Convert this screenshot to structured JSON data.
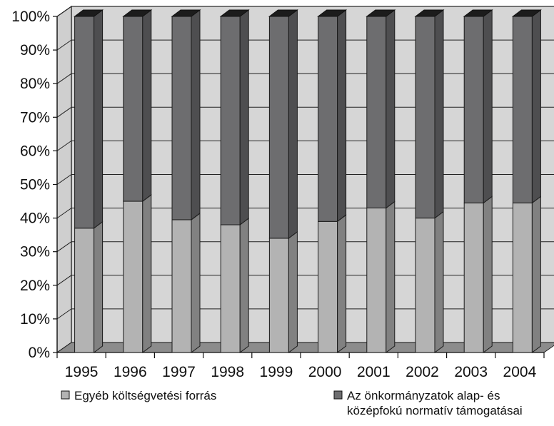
{
  "chart_data": {
    "type": "bar",
    "stacked": true,
    "percent_stacked": true,
    "three_d": true,
    "categories": [
      "1995",
      "1996",
      "1997",
      "1998",
      "1999",
      "2000",
      "2001",
      "2002",
      "2003",
      "2004"
    ],
    "series": [
      {
        "name": "Egyéb költségvetési forrás",
        "values": [
          37,
          45,
          39.5,
          38,
          34,
          39,
          43,
          40,
          44.5,
          44.5
        ],
        "color": "#b3b3b3"
      },
      {
        "name": "Az önkormányzatok alap- és középfokú normatív támogatásai",
        "legend_lines": [
          "Az önkormányzatok alap- és",
          "középfokú normatív támogatásai"
        ],
        "values": [
          63,
          55,
          60.5,
          62,
          66,
          61,
          57,
          60,
          55.5,
          55.5
        ],
        "color": "#6d6d6f"
      }
    ],
    "y_ticks": [
      "0%",
      "10%",
      "20%",
      "30%",
      "40%",
      "50%",
      "60%",
      "70%",
      "80%",
      "90%",
      "100%"
    ],
    "ylim": [
      0,
      100
    ],
    "grid": true,
    "legend_position": "bottom",
    "colors": {
      "wall": "#d6d6d6",
      "floor": "#8c8c8c",
      "bar_top": "#1c1c1c",
      "gridline": "#222222"
    }
  }
}
